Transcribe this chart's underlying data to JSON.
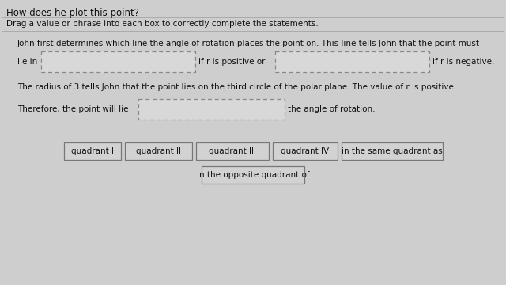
{
  "title": "How does he plot this point?",
  "subtitle": "Drag a value or phrase into each box to correctly complete the statements.",
  "line1": "John first determines which line the angle of rotation places the point on. This line tells John that the point must",
  "lie_in_prefix": "lie in",
  "mid_text1": "if r is positive or",
  "end_text1": "if r is negative.",
  "line2": "The radius of 3 tells John that the point lies on the third circle of the polar plane. The value of r is positive.",
  "therefore_prefix": "Therefore, the point will lie",
  "therefore_suffix": "the angle of rotation.",
  "draggable_items": [
    "quadrant I",
    "quadrant II",
    "quadrant III",
    "quadrant IV",
    "in the same quadrant as",
    "in the opposite quadrant of"
  ],
  "bg_color": "#cecece",
  "text_color": "#111111",
  "box_dash_color": "#888888",
  "box_solid_color": "#c8c8c8",
  "separator_color": "#aaaaaa",
  "font_size_title": 8.5,
  "font_size_body": 7.5,
  "font_size_drag": 7.5
}
